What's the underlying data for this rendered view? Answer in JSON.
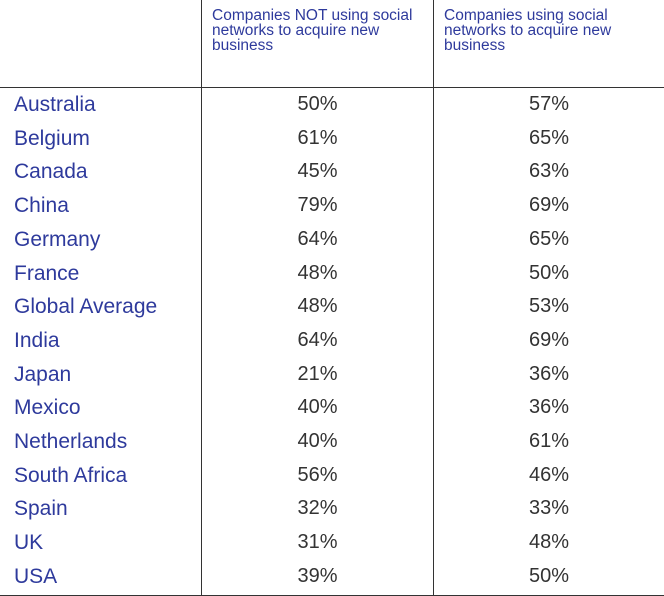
{
  "chart_data": {
    "type": "table",
    "columns": [
      "",
      "Companies NOT using social networks to acquire new business",
      "Companies using social networks to acquire new business"
    ],
    "header": {
      "col1": "Companies NOT using social networks to acquire new business",
      "col2": "Companies using social networks to acquire new business"
    },
    "rows": [
      {
        "country": "Australia",
        "not_using": "50%",
        "using": "57%"
      },
      {
        "country": "Belgium",
        "not_using": "61%",
        "using": "65%"
      },
      {
        "country": "Canada",
        "not_using": "45%",
        "using": "63%"
      },
      {
        "country": "China",
        "not_using": "79%",
        "using": "69%"
      },
      {
        "country": "Germany",
        "not_using": "64%",
        "using": "65%"
      },
      {
        "country": "France",
        "not_using": "48%",
        "using": "50%"
      },
      {
        "country": "Global Average",
        "not_using": "48%",
        "using": "53%"
      },
      {
        "country": "India",
        "not_using": "64%",
        "using": "69%"
      },
      {
        "country": "Japan",
        "not_using": "21%",
        "using": "36%"
      },
      {
        "country": "Mexico",
        "not_using": "40%",
        "using": "36%"
      },
      {
        "country": "Netherlands",
        "not_using": "40%",
        "using": "61%"
      },
      {
        "country": "South Africa",
        "not_using": "56%",
        "using": "46%"
      },
      {
        "country": "Spain",
        "not_using": "32%",
        "using": "33%"
      },
      {
        "country": "UK",
        "not_using": "31%",
        "using": "48%"
      },
      {
        "country": "USA",
        "not_using": "39%",
        "using": "50%"
      }
    ]
  },
  "colors": {
    "label_text": "#2e3a9c",
    "value_text": "#333333",
    "rule": "#333333"
  }
}
